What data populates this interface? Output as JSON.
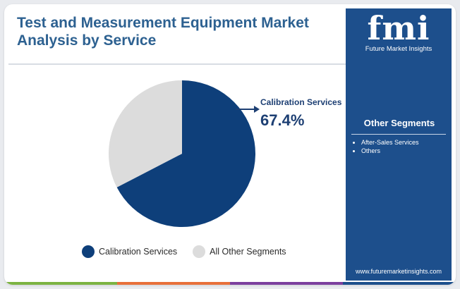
{
  "title": "Test and Measurement Equipment Market Analysis by Service",
  "chart_data": {
    "type": "pie",
    "categories": [
      "Calibration Services",
      "All Other Segments"
    ],
    "values": [
      67.4,
      32.6
    ],
    "colors": [
      "#0e3f7a",
      "#dcdcdc"
    ],
    "callout": {
      "label": "Calibration Services",
      "value": "67.4%"
    },
    "legend": "bottom"
  },
  "legend": [
    {
      "label": "Calibration Services",
      "color": "#0e3f7a"
    },
    {
      "label": "All Other Segments",
      "color": "#dcdcdc"
    }
  ],
  "sidebar": {
    "logo_mark": "fmi",
    "logo_text": "Future Market Insights",
    "segments_title": "Other Segments",
    "segments": [
      "After-Sales Services",
      "Others"
    ],
    "website": "www.futuremarketinsights.com",
    "color": "#1d4f8c"
  },
  "bottom_bar_colors": [
    "#7cb342",
    "#e8703a",
    "#7b3f9e",
    "#1d4f8c"
  ]
}
